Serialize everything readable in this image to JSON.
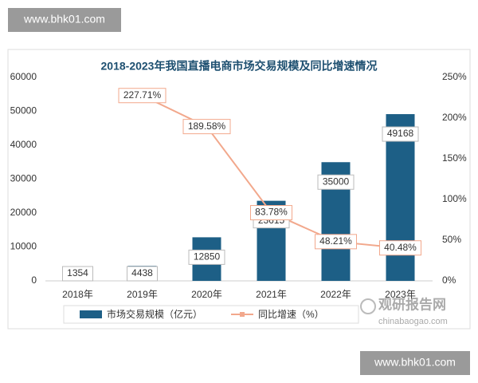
{
  "watermarks": [
    "www.bhk01.com",
    "www.bhk01.com"
  ],
  "logo": {
    "name": "观研报告网",
    "url": "chinabaogao.com"
  },
  "chart_data": {
    "type": "bar",
    "title": "2018-2023年我国直播电商市场交易规模及同比增速情况",
    "categories": [
      "2018年",
      "2019年",
      "2020年",
      "2021年",
      "2022年",
      "2023年"
    ],
    "series": [
      {
        "name": "市场交易规模（亿元）",
        "type": "bar",
        "color": "#1d5f86",
        "values": [
          1354,
          4438,
          12850,
          23615,
          35000,
          49168
        ]
      },
      {
        "name": "同比增速（%）",
        "type": "line",
        "axis": "y2",
        "color": "#f2a88c",
        "values": [
          null,
          227.71,
          189.58,
          83.78,
          48.21,
          40.48
        ],
        "value_labels": [
          null,
          "227.71%",
          "189.58%",
          "83.78%",
          "48.21%",
          "40.48%"
        ]
      }
    ],
    "ylim": [
      0,
      60000
    ],
    "yticks": [
      0,
      10000,
      20000,
      30000,
      40000,
      50000,
      60000
    ],
    "y2lim": [
      0,
      250
    ],
    "y2ticks": [
      {
        "value": 0,
        "label": "0%"
      },
      {
        "value": 50,
        "label": "50%"
      },
      {
        "value": 100,
        "label": "100%"
      },
      {
        "value": 150,
        "label": "150%"
      },
      {
        "value": 200,
        "label": "200%"
      },
      {
        "value": 250,
        "label": "250%"
      }
    ],
    "legend": "bottom"
  }
}
